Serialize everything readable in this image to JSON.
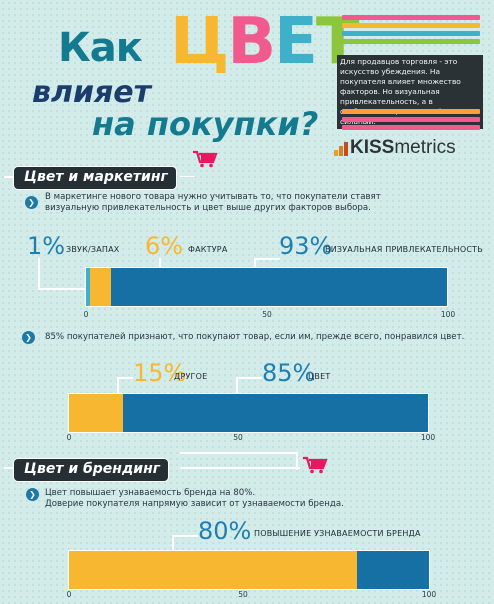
{
  "header": {
    "title_word1": "Как",
    "title_word2": "влияет",
    "title_word3": "на покупки?",
    "title_accent": [
      "Ц",
      "В",
      "Е",
      "Т"
    ],
    "title_accent_colors": [
      "#f7b731",
      "#f05a8c",
      "#3fb0c9",
      "#8cc63e"
    ],
    "stripe_colors": [
      "#f05a8c",
      "#f7b731",
      "#3fb0c9",
      "#8cc63e",
      "#ff9d3c",
      "#f05a8c"
    ],
    "note": "Для продавцов торговля - это искусство убеждения. На покупателя влияет множество факторов. Но визуальная привлекательность, а в особенности цвет - самый сильный.",
    "brand_bold": "KISS",
    "brand_rest": "metrics"
  },
  "sections": {
    "marketing": {
      "label": "Цвет и маркетинг"
    },
    "branding": {
      "label": "Цвет и брендинг"
    }
  },
  "texts": {
    "intro1": "В маркетинге нового товара нужно учитывать то, что покупатели ставят визуальную привлекательность и цвет выше других факторов выбора.",
    "intro2": "85% покупателей признают, что покупают товар, если им, прежде всего, понравился цвет.",
    "intro3a": "Цвет повышает узнаваемость бренда на 80%.",
    "intro3b": "Доверие покупателя напрямую зависит от узнаваемости бренда."
  },
  "colors": {
    "blue": "#1770a4",
    "yellow": "#f7b731",
    "cyan": "#3fb0c9",
    "pink": "#e5195e"
  },
  "chart_data": [
    {
      "type": "bar",
      "orientation": "horizontal-stacked",
      "series": [
        {
          "name": "ЗВУК/ЗАПАХ",
          "value": 1,
          "value_label": "1%"
        },
        {
          "name": "ФАКТУРА",
          "value": 6,
          "value_label": "6%"
        },
        {
          "name": "ВИЗУАЛЬНАЯ ПРИВЛЕКАТЕЛЬНОСТЬ",
          "value": 93,
          "value_label": "93%"
        }
      ],
      "xlim": [
        0,
        100
      ],
      "ticks": [
        "0",
        "50",
        "100"
      ]
    },
    {
      "type": "bar",
      "orientation": "horizontal-stacked",
      "series": [
        {
          "name": "ДРУГОЕ",
          "value": 15,
          "value_label": "15%"
        },
        {
          "name": "ЦВЕТ",
          "value": 85,
          "value_label": "85%"
        }
      ],
      "xlim": [
        0,
        100
      ],
      "ticks": [
        "0",
        "50",
        "100"
      ]
    },
    {
      "type": "bar",
      "orientation": "horizontal-stacked",
      "series": [
        {
          "name": "ПОВЫШЕНИЕ УЗНАВАЕМОСТИ БРЕНДА",
          "value": 80,
          "value_label": "80%"
        },
        {
          "name": "",
          "value": 20,
          "value_label": ""
        }
      ],
      "xlim": [
        0,
        100
      ],
      "ticks": [
        "0",
        "50",
        "100"
      ]
    }
  ]
}
